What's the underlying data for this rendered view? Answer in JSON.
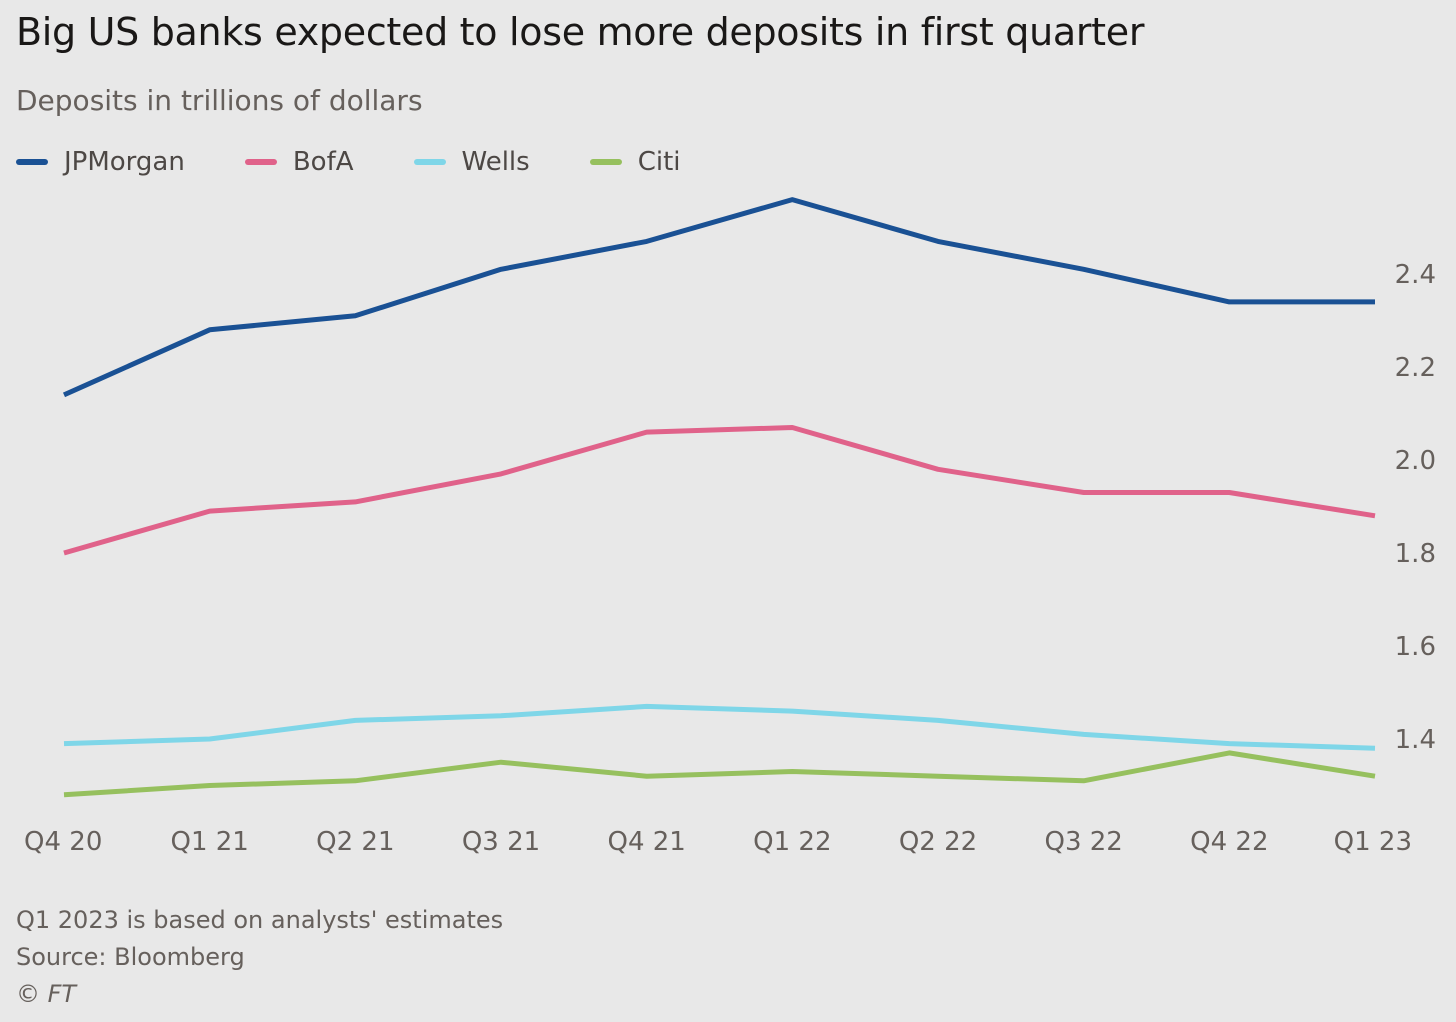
{
  "header": {
    "title": "Big US banks expected to lose more deposits in first quarter",
    "subtitle": "Deposits in trillions of dollars"
  },
  "legend": [
    {
      "label": "JPMorgan",
      "color": "#1a5194"
    },
    {
      "label": "BofA",
      "color": "#e0628a"
    },
    {
      "label": "Wells",
      "color": "#7fd6e8"
    },
    {
      "label": "Citi",
      "color": "#96c05e"
    }
  ],
  "footer": {
    "note": "Q1 2023 is based on analysts' estimates",
    "source": "Source: Bloomberg",
    "copyright": "© FT"
  },
  "chart_data": {
    "type": "line",
    "title": "Big US banks expected to lose more deposits in first quarter",
    "subtitle": "Deposits in trillions of dollars",
    "xlabel": "",
    "ylabel": "",
    "x": [
      "Q4 20",
      "Q1 21",
      "Q2 21",
      "Q3 21",
      "Q4 21",
      "Q1 22",
      "Q2 22",
      "Q3 22",
      "Q4 22",
      "Q1 23"
    ],
    "ylim": [
      1.3,
      2.6
    ],
    "yticks": [
      1.4,
      1.6,
      1.8,
      2.0,
      2.2,
      2.4
    ],
    "ytick_labels": [
      "1.4",
      "1.6",
      "1.8",
      "2.0",
      "2.2",
      "2.4"
    ],
    "y_axis_position": "right",
    "grid": false,
    "legend_position": "top-left",
    "series": [
      {
        "name": "JPMorgan",
        "color": "#1a5194",
        "values": [
          2.14,
          2.28,
          2.31,
          2.41,
          2.47,
          2.56,
          2.47,
          2.41,
          2.34,
          2.34
        ]
      },
      {
        "name": "BofA",
        "color": "#e0628a",
        "values": [
          1.8,
          1.89,
          1.91,
          1.97,
          2.06,
          2.07,
          1.98,
          1.93,
          1.93,
          1.88
        ]
      },
      {
        "name": "Wells",
        "color": "#7fd6e8",
        "values": [
          1.39,
          1.4,
          1.44,
          1.45,
          1.47,
          1.46,
          1.44,
          1.41,
          1.39,
          1.38
        ]
      },
      {
        "name": "Citi",
        "color": "#96c05e",
        "values": [
          1.28,
          1.3,
          1.31,
          1.35,
          1.32,
          1.33,
          1.32,
          1.31,
          1.37,
          1.32
        ]
      }
    ]
  }
}
